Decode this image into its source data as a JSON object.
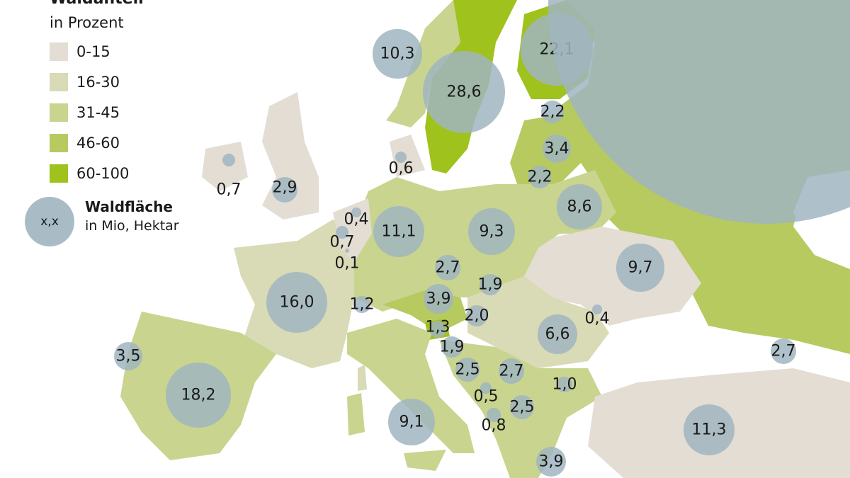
{
  "legend": {
    "title": "Waldanteil",
    "subtitle": "in Prozent",
    "classes": [
      {
        "label": "0-15",
        "color": "#e3ddd3"
      },
      {
        "label": "16-30",
        "color": "#d9dab6"
      },
      {
        "label": "31-45",
        "color": "#c9d48f"
      },
      {
        "label": "46-60",
        "color": "#b6ca60"
      },
      {
        "label": "60-100",
        "color": "#9fc21c"
      }
    ],
    "bubble_sample": "x,x",
    "bubble_title": "Waldfläche",
    "bubble_subtitle": "in Mio, Hektar",
    "bubble_color": "#a9bcc6"
  },
  "bubbles": [
    {
      "value": 10.3,
      "label": "10,3"
    },
    {
      "value": 28.6,
      "label": "28,6"
    },
    {
      "value": 22.1,
      "label": "22,1"
    },
    {
      "value": 2.2,
      "label": "2,2"
    },
    {
      "value": 3.4,
      "label": "3,4"
    },
    {
      "value": 2.2,
      "label": "2,2"
    },
    {
      "value": 8.6,
      "label": "8,6"
    },
    {
      "value": 0.7,
      "label": "0,7"
    },
    {
      "value": 2.9,
      "label": "2,9"
    },
    {
      "value": 0.6,
      "label": "0,6"
    },
    {
      "value": 0.4,
      "label": "0,4"
    },
    {
      "value": 0.7,
      "label": "0,7"
    },
    {
      "value": 0.1,
      "label": "0,1"
    },
    {
      "value": 11.1,
      "label": "11,1"
    },
    {
      "value": 9.3,
      "label": "9,3"
    },
    {
      "value": 2.7,
      "label": "2,7"
    },
    {
      "value": 1.9,
      "label": "1,9"
    },
    {
      "value": 16.0,
      "label": "16,0"
    },
    {
      "value": 1.2,
      "label": "1,2"
    },
    {
      "value": 3.9,
      "label": "3,9"
    },
    {
      "value": 2.0,
      "label": "2,0"
    },
    {
      "value": 1.3,
      "label": "1,3"
    },
    {
      "value": 1.9,
      "label": "1,9"
    },
    {
      "value": 6.6,
      "label": "6,6"
    },
    {
      "value": 0.4,
      "label": "0,4"
    },
    {
      "value": 9.7,
      "label": "9,7"
    },
    {
      "value": 3.5,
      "label": "3,5"
    },
    {
      "value": 2.7,
      "label": "2,7"
    },
    {
      "value": 18.2,
      "label": "18,2"
    },
    {
      "value": 2.5,
      "label": "2,5"
    },
    {
      "value": 2.7,
      "label": "2,7"
    },
    {
      "value": 0.5,
      "label": "0,5"
    },
    {
      "value": 1.0,
      "label": "1,0"
    },
    {
      "value": 2.5,
      "label": "2,5"
    },
    {
      "value": 0.8,
      "label": "0,8"
    },
    {
      "value": 9.1,
      "label": "9,1"
    },
    {
      "value": 11.3,
      "label": "11,3"
    },
    {
      "value": 3.9,
      "label": "3,9"
    },
    {
      "value": 815,
      "label": ""
    }
  ]
}
